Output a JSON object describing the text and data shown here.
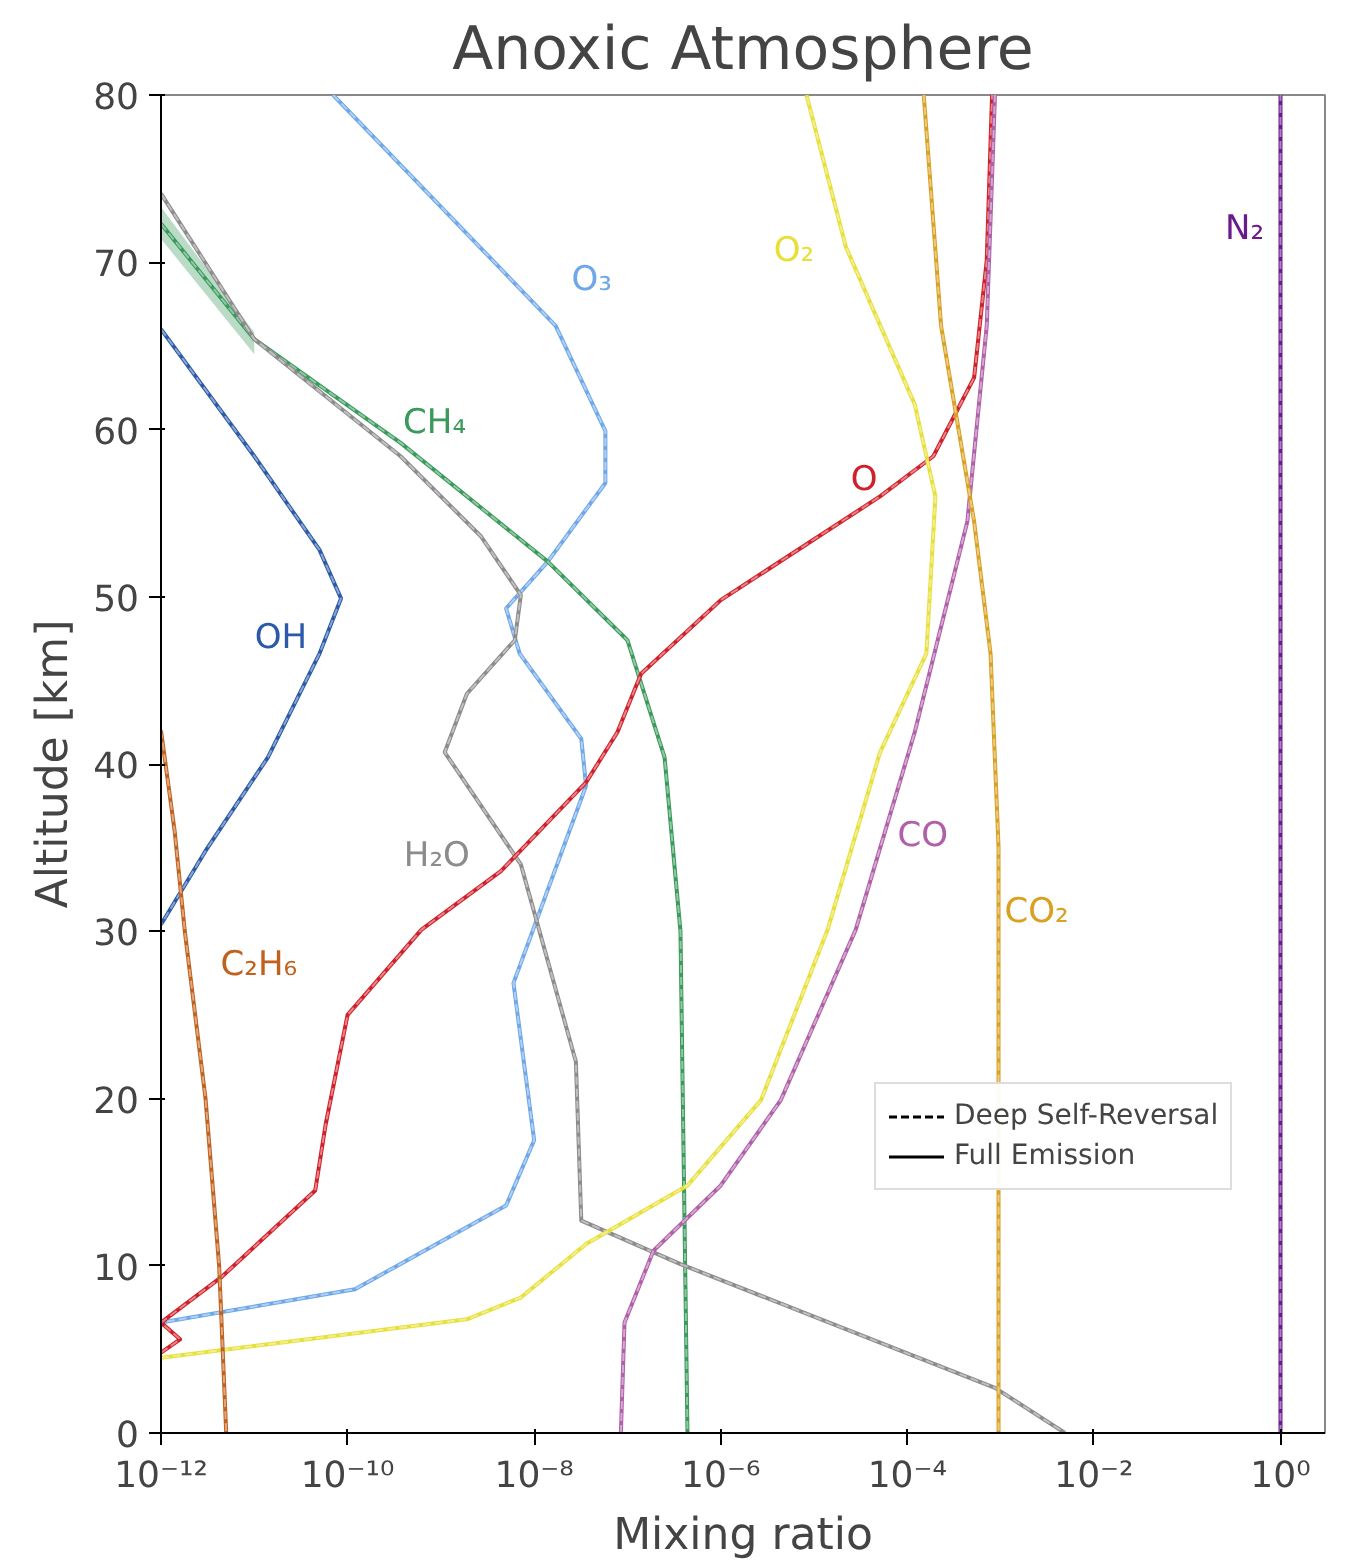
{
  "chart_data": {
    "type": "line",
    "title": "Anoxic Atmosphere",
    "xlabel": "Mixing ratio",
    "ylabel": "Altitude [km]",
    "log": "x",
    "grid": false,
    "legend": "bottom right",
    "xlim": [
      1e-12,
      3
    ],
    "ylim": [
      0,
      80
    ],
    "xticks": [
      {
        "value": 1e-12,
        "label": "10⁻¹²"
      },
      {
        "value": 1e-10,
        "label": "10⁻¹⁰"
      },
      {
        "value": 1e-08,
        "label": "10⁻⁸"
      },
      {
        "value": 1e-06,
        "label": "10⁻⁶"
      },
      {
        "value": 0.0001,
        "label": "10⁻⁴"
      },
      {
        "value": 0.01,
        "label": "10⁻²"
      },
      {
        "value": 1,
        "label": "10⁰"
      }
    ],
    "yticks": [
      0,
      10,
      20,
      30,
      40,
      50,
      60,
      70,
      80
    ],
    "series": [
      {
        "name": "OH",
        "color": "#2b5aa8",
        "x": [
          1e-12,
          1e-11,
          5e-11,
          8.5e-11,
          5e-11,
          1.4e-11,
          3e-12,
          1e-12
        ],
        "values": [
          66,
          58.4,
          52.8,
          49.9,
          46.6,
          40.4,
          34.8,
          30.4
        ]
      },
      {
        "name": "O₃",
        "color": "#6fa8e8",
        "x": [
          7e-11,
          1.7e-08,
          5.8e-08,
          5.8e-08,
          1.4e-08,
          5e-09,
          7e-09,
          3.2e-08,
          3.6e-08,
          6e-09,
          1e-08,
          5e-09,
          1.2e-10,
          1e-12
        ],
        "values": [
          80,
          66.2,
          59.9,
          56.8,
          52.1,
          49.3,
          46.6,
          41.5,
          38.7,
          26.9,
          17.5,
          13.6,
          8.6,
          6.6
        ]
      },
      {
        "name": "CH₄",
        "color": "#3a9a5b",
        "x": [
          1e-12,
          1e-11,
          3.7e-10,
          1.4e-08,
          1e-07,
          2.5e-07,
          3.7e-07,
          4.4e-07
        ],
        "values": [
          72.3,
          65.4,
          59.2,
          52.1,
          47.4,
          40.4,
          30,
          0
        ],
        "lower": [
          71.4,
          64.5,
          null,
          null,
          null,
          null,
          null,
          null
        ],
        "upper": [
          73.3,
          65.8,
          null,
          null,
          null,
          null,
          null,
          null
        ]
      },
      {
        "name": "H₂O",
        "color": "#8c8c8c",
        "x": [
          1e-12,
          1e-11,
          3.7e-10,
          2.7e-09,
          7.2e-09,
          6.2e-09,
          1.9e-09,
          1.1e-09,
          7.2e-09,
          2.8e-08,
          3.2e-08,
          3.7e-07,
          5.1e-05,
          0.00087,
          0.0049
        ],
        "values": [
          74.1,
          65.4,
          58.4,
          53.6,
          50.1,
          47.4,
          44.2,
          40.7,
          34,
          22.2,
          12.7,
          10.1,
          5.4,
          2.7,
          0
        ]
      },
      {
        "name": "O",
        "color": "#d0202a",
        "x": [
          1e-12,
          1.6e-12,
          1e-12,
          4.4e-12,
          4.5e-11,
          5.8e-11,
          1e-10,
          6.2e-10,
          4.4e-09,
          3.6e-08,
          7.8e-08,
          1.4e-07,
          1e-06,
          5.1e-05,
          0.00019,
          0.00052,
          0.00071,
          0.00081
        ],
        "values": [
          4.8,
          5.6,
          6.6,
          9.3,
          14.5,
          18.4,
          25,
          30.1,
          33.6,
          38.9,
          41.9,
          45.4,
          49.8,
          56,
          58.4,
          63.1,
          70.1,
          80
        ]
      },
      {
        "name": "O₂",
        "color": "#e8e03a",
        "x": [
          1e-12,
          1.9e-09,
          7.2e-09,
          3.6e-08,
          4.4e-07,
          2.7e-06,
          1.4e-05,
          5.1e-05,
          0.00016,
          0.0002,
          0.00012,
          2.2e-05,
          8.3e-06
        ],
        "values": [
          4.5,
          6.8,
          8.1,
          11.3,
          14.8,
          19.9,
          30.1,
          40.7,
          46.6,
          56,
          61.5,
          70.9,
          80
        ]
      },
      {
        "name": "CO",
        "color": "#b060a8",
        "x": [
          8.5e-08,
          9.3e-08,
          1.9e-07,
          1e-06,
          4.4e-06,
          2.8e-05,
          0.00012,
          0.00044,
          0.00071,
          0.00087
        ],
        "values": [
          0,
          6.6,
          10.9,
          14.8,
          19.9,
          30.1,
          41.9,
          54.5,
          66.2,
          80
        ]
      },
      {
        "name": "CO₂",
        "color": "#d9a021",
        "x": [
          0.00015,
          0.00023,
          0.00052,
          0.00078,
          0.00095,
          0.00095
        ],
        "values": [
          80,
          66.2,
          54.5,
          46.6,
          35,
          0
        ]
      },
      {
        "name": "N₂",
        "color": "#6a1a8a",
        "x": [
          1,
          1
        ],
        "values": [
          0,
          80
        ]
      },
      {
        "name": "C₂H₆",
        "color": "#c0621e",
        "x": [
          1e-12,
          1.4e-12,
          1.8e-12,
          3e-12,
          4.2e-12,
          5e-12
        ],
        "values": [
          42,
          36,
          30,
          20,
          10,
          0
        ]
      },
      {
        "name": "Deep Self-Reversal",
        "color": "#000000",
        "line_style": "dashed"
      },
      {
        "name": "Full Emission",
        "color": "#000000",
        "line_style": "solid"
      }
    ]
  }
}
